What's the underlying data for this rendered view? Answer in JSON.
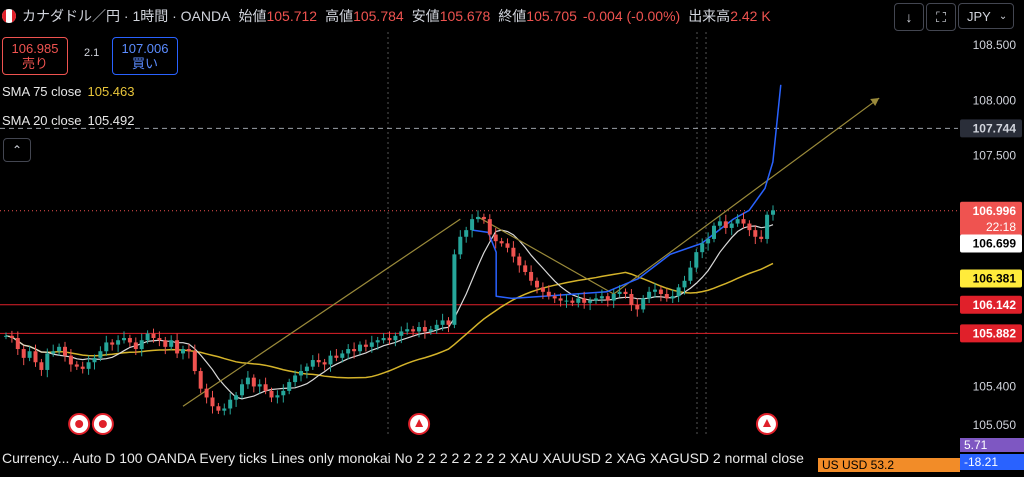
{
  "header": {
    "symbol_title": "カナダドル／円 · 1時間 · OANDA",
    "open_label": "始値",
    "open_value": "105.712",
    "high_label": "高値",
    "high_value": "105.784",
    "low_label": "安値",
    "low_value": "105.678",
    "close_label": "終値",
    "close_value": "105.705",
    "change_value": "-0.004 (-0.00%)",
    "volume_label": "出来高",
    "volume_value": "2.42 K",
    "currency": "JPY"
  },
  "trade": {
    "sell_price": "106.985",
    "sell_label": "売り",
    "spread": "2.1",
    "buy_price": "107.006",
    "buy_label": "買い"
  },
  "indicators": [
    {
      "label": "SMA 75 close",
      "value": "105.463",
      "color": "#e8c53a"
    },
    {
      "label": "SMA 20 close",
      "value": "105.492",
      "color": "#e8e8e8"
    }
  ],
  "bottom_pane": {
    "legend": "Currency... Auto D 100 OANDA Every ticks Lines only monokai No 2 2 2 2 2 2 2 2 XAU XAUUSD 2 XAG XAGUSD 2 normal close",
    "badges": [
      "5.71",
      "-18.21"
    ],
    "partial_text": "US   USD   53.2"
  },
  "colors": {
    "up": "#26a69a",
    "down": "#ef5350",
    "sma20": "#d9d9d9",
    "sma75": "#d4b32a",
    "arc": "#2962ff",
    "trend": "#9a8a3a"
  },
  "chart_data": {
    "type": "candlestick",
    "ylim": [
      104.95,
      108.62
    ],
    "y_ticks": [
      105.05,
      105.4,
      107.5,
      108.0,
      108.5
    ],
    "price_labels": [
      {
        "value": 107.744,
        "text": "107.744",
        "bg": "#2a2e39",
        "fg": "#d1d4dc"
      },
      {
        "value": 106.996,
        "text": "106.996",
        "sub": "22:18",
        "bg": "#ef5350",
        "fg": "#ffffff"
      },
      {
        "value": 106.699,
        "text": "106.699",
        "bg": "#ffffff",
        "fg": "#000000"
      },
      {
        "value": 106.381,
        "text": "106.381",
        "bg": "#ffeb3b",
        "fg": "#000000"
      },
      {
        "value": 106.142,
        "text": "106.142",
        "bg": "#e0202a",
        "fg": "#ffffff"
      },
      {
        "value": 105.882,
        "text": "105.882",
        "bg": "#e0202a",
        "fg": "#ffffff"
      }
    ],
    "horizontal_lines": [
      {
        "value": 106.142,
        "color": "#e0202a",
        "style": "solid"
      },
      {
        "value": 105.882,
        "color": "#e0202a",
        "style": "solid"
      },
      {
        "value": 107.744,
        "color": "#9aa0a6",
        "style": "dashed"
      },
      {
        "value": 106.996,
        "color": "#ef5350",
        "style": "dotted"
      }
    ],
    "close_series": [
      105.86,
      105.84,
      105.74,
      105.66,
      105.72,
      105.62,
      105.55,
      105.7,
      105.72,
      105.76,
      105.68,
      105.6,
      105.58,
      105.56,
      105.62,
      105.66,
      105.72,
      105.8,
      105.78,
      105.82,
      105.84,
      105.8,
      105.74,
      105.82,
      105.88,
      105.84,
      105.82,
      105.76,
      105.82,
      105.7,
      105.74,
      105.72,
      105.54,
      105.38,
      105.3,
      105.22,
      105.18,
      105.2,
      105.28,
      105.32,
      105.42,
      105.48,
      105.4,
      105.42,
      105.36,
      105.3,
      105.32,
      105.36,
      105.44,
      105.5,
      105.54,
      105.58,
      105.64,
      105.62,
      105.6,
      105.68,
      105.66,
      105.7,
      105.74,
      105.72,
      105.78,
      105.76,
      105.8,
      105.82,
      105.84,
      105.82,
      105.86,
      105.9,
      105.92,
      105.9,
      105.94,
      105.9,
      105.92,
      105.96,
      106.0,
      105.96,
      106.6,
      106.76,
      106.82,
      106.92,
      106.94,
      106.92,
      106.78,
      106.72,
      106.7,
      106.66,
      106.58,
      106.5,
      106.44,
      106.36,
      106.3,
      106.26,
      106.22,
      106.2,
      106.18,
      106.18,
      106.16,
      106.2,
      106.16,
      106.18,
      106.2,
      106.22,
      106.18,
      106.24,
      106.26,
      106.24,
      106.14,
      106.1,
      106.2,
      106.26,
      106.28,
      106.24,
      106.2,
      106.22,
      106.3,
      106.36,
      106.48,
      106.62,
      106.7,
      106.74,
      106.86,
      106.9,
      106.84,
      106.88,
      106.92,
      106.88,
      106.82,
      106.76,
      106.74,
      106.96,
      107.0
    ],
    "x_events": [
      {
        "index": 9,
        "flag": "JP"
      },
      {
        "index": 12,
        "flag": "JP"
      },
      {
        "index": 52,
        "flag": "CA"
      },
      {
        "index": 96,
        "flag": "CA"
      }
    ],
    "trendlines": [
      {
        "from": [
          30,
          105.22
        ],
        "to": [
          77,
          106.92
        ]
      },
      {
        "from": [
          80,
          106.94
        ],
        "to": [
          103,
          106.24
        ]
      },
      {
        "from": [
          103,
          106.24
        ],
        "to": [
          148,
          108.02
        ]
      }
    ],
    "forecast_arc": [
      [
        59,
        106.82
      ],
      [
        61,
        106.8
      ],
      [
        62,
        106.62
      ],
      [
        62,
        106.22
      ],
      [
        64,
        106.2
      ],
      [
        68,
        106.22
      ],
      [
        76,
        106.26
      ],
      [
        80,
        106.38
      ],
      [
        84,
        106.6
      ],
      [
        88,
        106.7
      ],
      [
        92,
        106.92
      ],
      [
        94,
        107.0
      ],
      [
        96,
        107.2
      ],
      [
        97,
        107.44
      ],
      [
        98,
        108.14
      ]
    ]
  }
}
